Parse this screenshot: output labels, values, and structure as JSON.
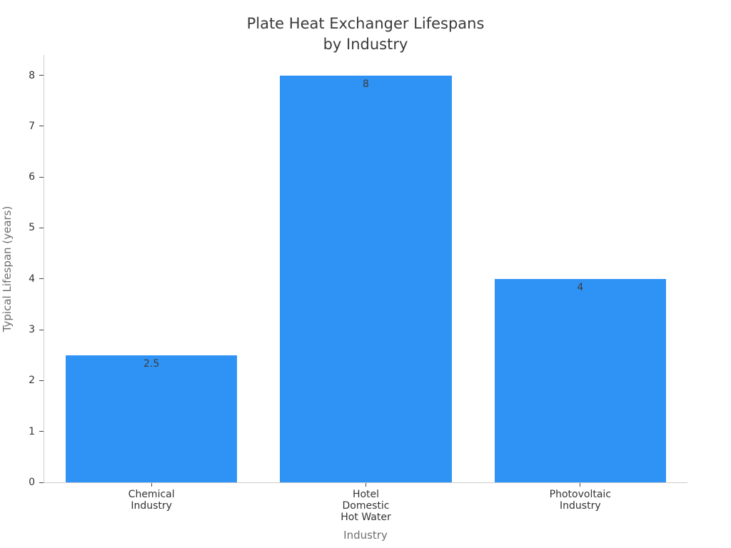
{
  "chart_data": {
    "type": "bar",
    "title": "Plate Heat Exchanger Lifespans\nby Industry",
    "xlabel": "Industry",
    "ylabel": "Typical Lifespan (years)",
    "categories": [
      "Chemical\nIndustry",
      "Hotel\nDomestic\nHot Water",
      "Photovoltaic\nIndustry"
    ],
    "values": [
      2.5,
      8,
      4
    ],
    "value_labels": [
      "2.5",
      "8",
      "4"
    ],
    "yticks": [
      0,
      1,
      2,
      3,
      4,
      5,
      6,
      7,
      8
    ],
    "ylim": [
      0,
      8.4
    ],
    "grid": false,
    "legend": "none",
    "bar_width_fraction": 0.8,
    "colors": {
      "bar_fill": "#2f93f5",
      "spine": "#cdcdcd",
      "tick_mark": "#444444",
      "tick_label": "#333333",
      "axis_label": "#6e6e6e",
      "title": "#3a3a3a",
      "value_label": "#3c3c3c",
      "background": "#ffffff"
    }
  }
}
